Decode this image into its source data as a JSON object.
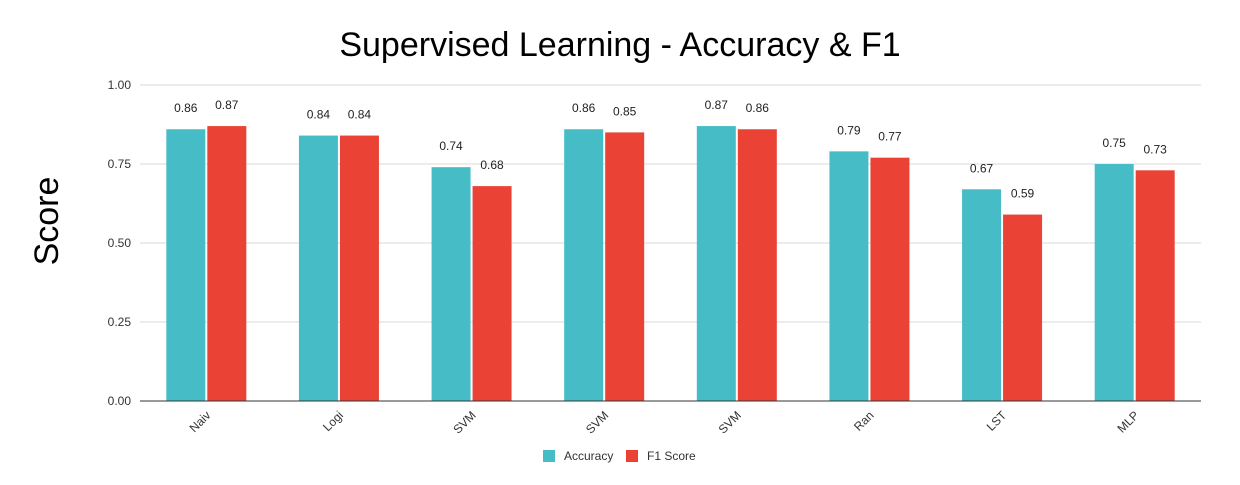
{
  "chart_data": {
    "type": "bar",
    "title": "Supervised Learning - Accuracy & F1",
    "xlabel": "",
    "ylabel": "Score",
    "ylim": [
      0,
      1
    ],
    "yticks": [
      "0.00",
      "0.25",
      "0.50",
      "0.75",
      "1.00"
    ],
    "grid": true,
    "legend_position": "bottom",
    "categories": [
      "Naiv",
      "Logi",
      "SVM",
      "SVM",
      "SVM",
      "Ran",
      "LST",
      "MLP"
    ],
    "series": [
      {
        "name": "Accuracy",
        "color": "#46bdc6",
        "values": [
          0.86,
          0.84,
          0.74,
          0.86,
          0.87,
          0.79,
          0.67,
          0.75
        ]
      },
      {
        "name": "F1 Score",
        "color": "#ea4335",
        "values": [
          0.87,
          0.84,
          0.68,
          0.85,
          0.86,
          0.77,
          0.59,
          0.73
        ]
      }
    ]
  }
}
